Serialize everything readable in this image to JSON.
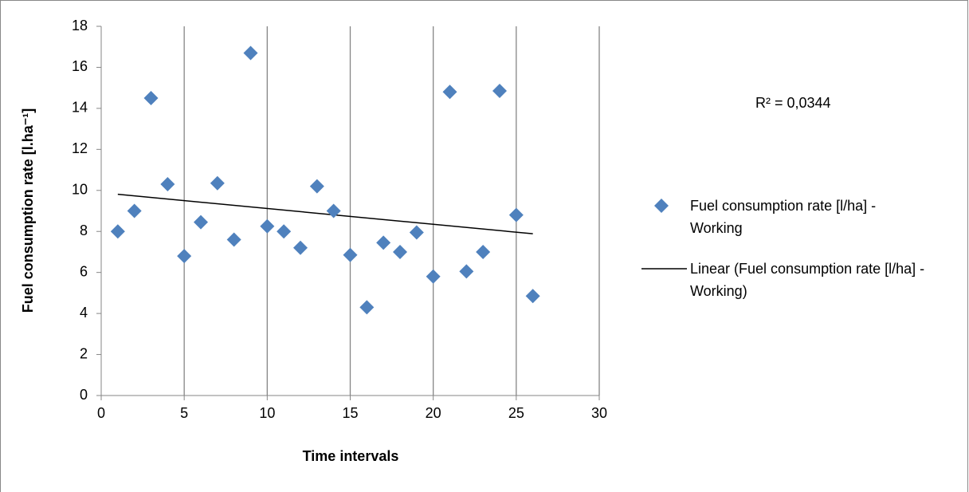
{
  "chart_data": {
    "type": "scatter",
    "xlabel": "Time intervals",
    "ylabel": "Fuel consumption rate [l.ha⁻¹]",
    "x": [
      1,
      2,
      3,
      4,
      5,
      6,
      7,
      8,
      9,
      10,
      11,
      12,
      13,
      14,
      15,
      16,
      17,
      18,
      19,
      20,
      21,
      22,
      23,
      24,
      25,
      26
    ],
    "series": [
      {
        "name": "Fuel consumption rate [l/ha] - Working",
        "color": "#4f81bd",
        "values": [
          8.0,
          9.0,
          14.5,
          10.3,
          6.8,
          8.45,
          10.35,
          7.6,
          16.7,
          8.25,
          8.0,
          7.2,
          10.2,
          9.0,
          6.85,
          4.3,
          7.45,
          7.0,
          7.95,
          5.8,
          14.8,
          6.05,
          7.0,
          14.85,
          8.8,
          4.85
        ]
      }
    ],
    "trendline": {
      "name": "Linear (Fuel consumption rate [l/ha] - Working)",
      "fit": "linear",
      "color": "#000000"
    },
    "annotation": "R² = 0,0344",
    "xlim": [
      0,
      30
    ],
    "xticks": [
      0,
      5,
      10,
      15,
      20,
      25,
      30
    ],
    "ylim": [
      0,
      18
    ],
    "yticks": [
      0,
      2,
      4,
      6,
      8,
      10,
      12,
      14,
      16,
      18
    ],
    "grid": "x"
  }
}
